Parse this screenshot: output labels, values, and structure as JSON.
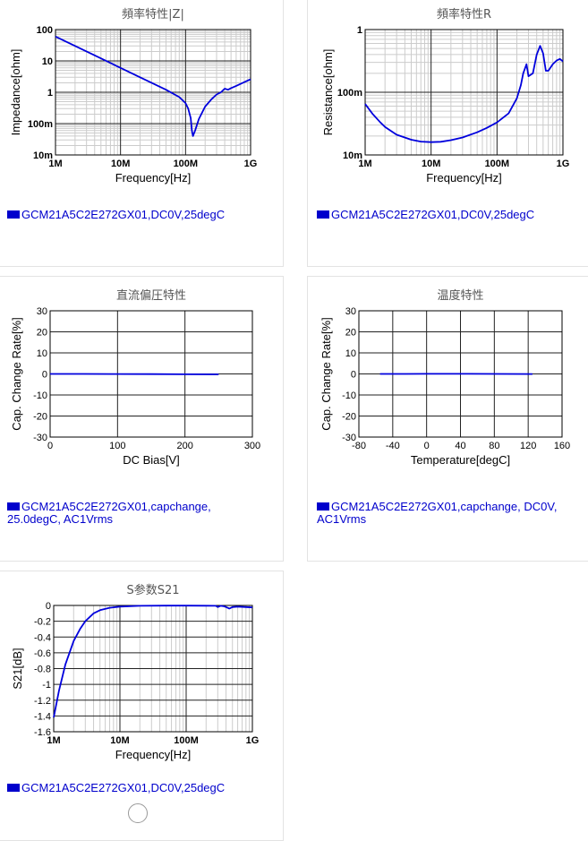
{
  "colors": {
    "series": "#0000dd",
    "legend": "#0000cc",
    "grid_major": "#222222",
    "grid_minor": "#cccccc"
  },
  "chart_data": [
    {
      "id": "impedance",
      "type": "line",
      "title": "頻率特性|Z|",
      "xlabel": "Frequency[Hz]",
      "ylabel": "Impedance[ohm]",
      "xscale": "log",
      "yscale": "log",
      "xlim": [
        1000000,
        1000000000
      ],
      "ylim": [
        0.01,
        100
      ],
      "xticks": [
        1000000,
        10000000,
        100000000,
        1000000000
      ],
      "xticklabels": [
        "1M",
        "10M",
        "100M",
        "1G"
      ],
      "yticks": [
        0.01,
        0.1,
        1,
        10,
        100
      ],
      "yticklabels": [
        "10m",
        "100m",
        "1",
        "10",
        "100"
      ],
      "grid": true,
      "series": [
        {
          "name": "GCM21A5C2E272GX01,DC0V,25degC",
          "x": [
            1000000,
            2000000,
            5000000,
            10000000,
            20000000,
            50000000,
            80000000,
            100000000,
            110000000,
            120000000,
            125000000,
            130000000,
            140000000,
            160000000,
            200000000,
            250000000,
            300000000,
            350000000,
            400000000,
            450000000,
            500000000,
            600000000,
            800000000,
            1000000000
          ],
          "y": [
            60,
            30,
            12,
            6,
            3,
            1.2,
            0.7,
            0.45,
            0.3,
            0.15,
            0.06,
            0.04,
            0.06,
            0.14,
            0.35,
            0.6,
            0.85,
            1.0,
            1.3,
            1.2,
            1.35,
            1.6,
            2.1,
            2.6
          ]
        }
      ]
    },
    {
      "id": "resistance",
      "type": "line",
      "title": "頻率特性R",
      "xlabel": "Frequency[Hz]",
      "ylabel": "Resistance[ohm]",
      "xscale": "log",
      "yscale": "log",
      "xlim": [
        1000000,
        1000000000
      ],
      "ylim": [
        0.01,
        1
      ],
      "xticks": [
        1000000,
        10000000,
        100000000,
        1000000000
      ],
      "xticklabels": [
        "1M",
        "10M",
        "100M",
        "1G"
      ],
      "yticks": [
        0.01,
        0.1,
        1
      ],
      "yticklabels": [
        "10m",
        "100m",
        "1"
      ],
      "grid": true,
      "series": [
        {
          "name": "GCM21A5C2E272GX01,DC0V,25degC",
          "x": [
            1000000,
            1300000,
            1700000,
            2000000,
            3000000,
            5000000,
            7000000,
            10000000,
            14000000,
            20000000,
            30000000,
            50000000,
            70000000,
            100000000,
            150000000,
            200000000,
            230000000,
            250000000,
            280000000,
            300000000,
            350000000,
            400000000,
            450000000,
            500000000,
            550000000,
            600000000,
            700000000,
            800000000,
            900000000,
            1000000000
          ],
          "y": [
            0.065,
            0.045,
            0.033,
            0.028,
            0.021,
            0.0175,
            0.0163,
            0.016,
            0.0162,
            0.0172,
            0.019,
            0.023,
            0.027,
            0.033,
            0.046,
            0.08,
            0.13,
            0.2,
            0.28,
            0.18,
            0.2,
            0.4,
            0.55,
            0.42,
            0.22,
            0.22,
            0.28,
            0.32,
            0.34,
            0.31
          ]
        }
      ]
    },
    {
      "id": "dc-bias",
      "type": "line",
      "title": "直流偏圧特性",
      "xlabel": "DC Bias[V]",
      "ylabel": "Cap. Change Rate[%]",
      "xlim": [
        0,
        300
      ],
      "ylim": [
        -30,
        30
      ],
      "xticks": [
        0,
        100,
        200,
        300
      ],
      "yticks": [
        -30,
        -20,
        -10,
        0,
        10,
        20,
        30
      ],
      "grid": true,
      "series": [
        {
          "name": "GCM21A5C2E272GX01,capchange,\n25.0degC, AC1Vrms",
          "x": [
            0,
            50,
            100,
            150,
            200,
            250
          ],
          "y": [
            0,
            0,
            -0.05,
            -0.1,
            -0.15,
            -0.2
          ]
        }
      ]
    },
    {
      "id": "temperature",
      "type": "line",
      "title": "温度特性",
      "xlabel": "Temperature[degC]",
      "ylabel": "Cap. Change Rate[%]",
      "xlim": [
        -80,
        160
      ],
      "ylim": [
        -30,
        30
      ],
      "xticks": [
        -80,
        -40,
        0,
        40,
        80,
        120,
        160
      ],
      "yticks": [
        -30,
        -20,
        -10,
        0,
        10,
        20,
        30
      ],
      "grid": true,
      "series": [
        {
          "name": "GCM21A5C2E272GX01,capchange, DC0V,\nAC1Vrms",
          "x": [
            -55,
            -25,
            0,
            25,
            50,
            85,
            125
          ],
          "y": [
            0,
            0,
            0.05,
            0.05,
            0.05,
            0,
            -0.05
          ]
        }
      ]
    },
    {
      "id": "s21",
      "type": "line",
      "title": "S参数S21",
      "xlabel": "Frequency[Hz]",
      "ylabel": "S21[dB]",
      "xscale": "log",
      "xlim": [
        1000000,
        1000000000
      ],
      "ylim": [
        -1.6,
        0
      ],
      "xticks": [
        1000000,
        10000000,
        100000000,
        1000000000
      ],
      "xticklabels": [
        "1M",
        "10M",
        "100M",
        "1G"
      ],
      "yticks": [
        -1.6,
        -1.4,
        -1.2,
        -1,
        -0.8,
        -0.6,
        -0.4,
        -0.2,
        0
      ],
      "grid": true,
      "series": [
        {
          "name": "GCM21A5C2E272GX01,DC0V,25degC",
          "x": [
            1000000,
            1200000,
            1500000,
            2000000,
            2500000,
            3000000,
            4000000,
            5000000,
            7000000,
            10000000,
            20000000,
            50000000,
            100000000,
            200000000,
            280000000,
            300000000,
            330000000,
            370000000,
            400000000,
            450000000,
            500000000,
            600000000,
            800000000,
            1000000000
          ],
          "y": [
            -1.42,
            -1.08,
            -0.75,
            -0.45,
            -0.3,
            -0.2,
            -0.1,
            -0.06,
            -0.03,
            -0.015,
            -0.005,
            -0.002,
            -0.002,
            -0.003,
            -0.005,
            -0.02,
            -0.005,
            -0.01,
            -0.02,
            -0.04,
            -0.02,
            -0.015,
            -0.02,
            -0.025
          ]
        }
      ]
    }
  ]
}
